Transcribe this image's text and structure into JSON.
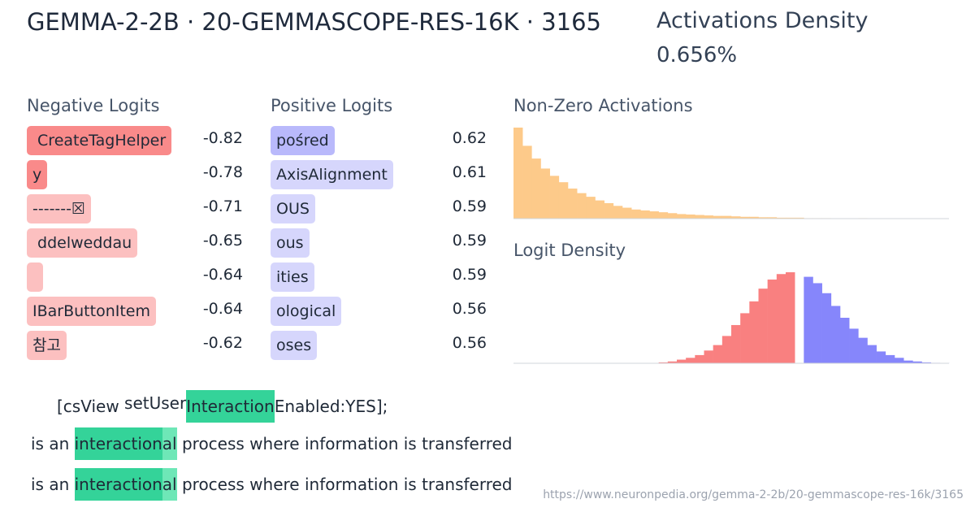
{
  "header": {
    "title": "GEMMA-2-2B · 20-GEMMASCOPE-RES-16K · 3165",
    "density_label": "Activations Density",
    "density_value": "0.656%"
  },
  "negative_logits": {
    "heading": "Negative Logits",
    "items": [
      {
        "token": " CreateTagHelper",
        "value": -0.82,
        "color": "#f98a8a"
      },
      {
        "token": "y",
        "value": -0.78,
        "color": "#f98a8a"
      },
      {
        "token": "-------☒",
        "value": -0.71,
        "color": "#fcc0c0"
      },
      {
        "token": " ddelweddau",
        "value": -0.65,
        "color": "#fcc0c0"
      },
      {
        "token": " ",
        "value": -0.64,
        "color": "#fcc0c0"
      },
      {
        "token": "IBarButtonItem",
        "value": -0.64,
        "color": "#fcc0c0"
      },
      {
        "token": "참고",
        "value": -0.62,
        "color": "#fcc0c0"
      }
    ]
  },
  "positive_logits": {
    "heading": "Positive Logits",
    "items": [
      {
        "token": "pośred",
        "value": 0.62,
        "color": "#b9b9fb"
      },
      {
        "token": "AxisAlignment",
        "value": 0.61,
        "color": "#d6d6fc"
      },
      {
        "token": "OUS",
        "value": 0.59,
        "color": "#d6d6fc"
      },
      {
        "token": "ous",
        "value": 0.59,
        "color": "#d6d6fc"
      },
      {
        "token": "ities",
        "value": 0.59,
        "color": "#d6d6fc"
      },
      {
        "token": "ological",
        "value": 0.56,
        "color": "#d6d6fc"
      },
      {
        "token": "oses",
        "value": 0.56,
        "color": "#d6d6fc"
      }
    ]
  },
  "chart_data": [
    {
      "type": "histogram",
      "title": "Non-Zero Activations",
      "color": "#fdca8a",
      "values": [
        100,
        80,
        66,
        55,
        47,
        40,
        33,
        28,
        24,
        20,
        17,
        14,
        12,
        10,
        9,
        8,
        7,
        6,
        5,
        4.5,
        4,
        3.5,
        3,
        3,
        2.5,
        2,
        2,
        1.5,
        1.5,
        1,
        1,
        1,
        0.5,
        0.5,
        0.5,
        0,
        0,
        0,
        0.5,
        0,
        0,
        0,
        0,
        0,
        0,
        0,
        0,
        0
      ]
    },
    {
      "type": "histogram",
      "title": "Logit Density",
      "series": [
        {
          "color": "#f98080",
          "values": [
            0,
            0,
            0,
            0,
            0,
            0,
            0,
            0,
            0,
            0,
            0,
            0,
            0,
            0.3,
            0,
            0.3,
            1,
            2,
            4,
            6,
            9,
            14,
            20,
            30,
            42,
            55,
            68,
            82,
            92,
            98,
            100,
            0
          ]
        },
        {
          "color": "#8686fb",
          "values": [
            95,
            88,
            77,
            63,
            50,
            38,
            28,
            20,
            13,
            9,
            6,
            3,
            2,
            1,
            0.5,
            0.3
          ]
        }
      ]
    }
  ],
  "examples": [
    [
      {
        "text": "[csView ",
        "color": null
      },
      {
        "text": "setUser",
        "color": null
      },
      {
        "text": "Interaction",
        "color": "#34d399"
      },
      {
        "text": "Enabled:YES];",
        "color": null
      }
    ],
    [
      {
        "text": "is an ",
        "color": null
      },
      {
        "text": "interaction",
        "color": "#34d399"
      },
      {
        "text": "al",
        "color": "#6ee7b7"
      },
      {
        "text": " process where information is transferred",
        "color": null
      }
    ],
    [
      {
        "text": "is an ",
        "color": null
      },
      {
        "text": "interaction",
        "color": "#34d399"
      },
      {
        "text": "al",
        "color": "#6ee7b7"
      },
      {
        "text": " process where information is transferred",
        "color": null
      }
    ]
  ],
  "url": "https://www.neuronpedia.org/gemma-2-2b/20-gemmascope-res-16k/3165"
}
